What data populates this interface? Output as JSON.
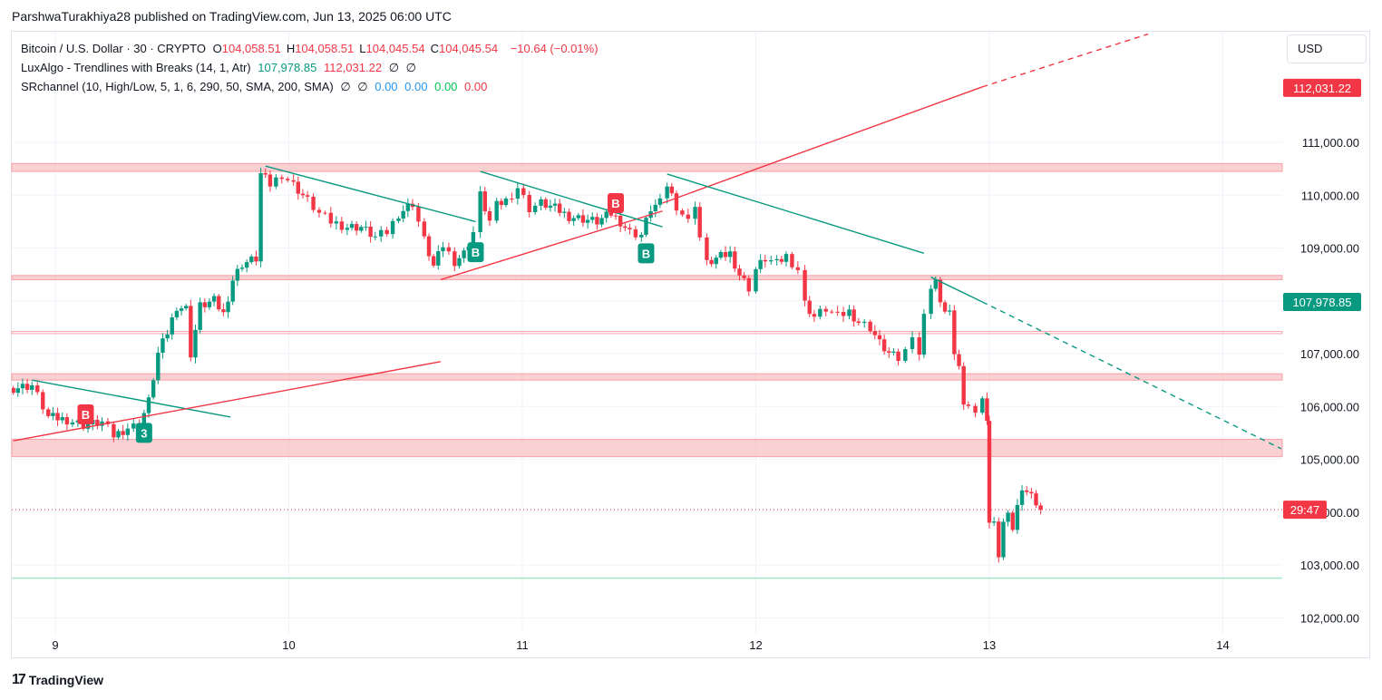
{
  "header": {
    "publisher_line": "ParshwaTurakhiya28 published on TradingView.com, Jun 13, 2025 06:00 UTC"
  },
  "legend": {
    "symbol": "Bitcoin / U.S. Dollar · 30 · CRYPTO",
    "ohlc": [
      {
        "k": "O",
        "v": "104,058.51"
      },
      {
        "k": "H",
        "v": "104,058.51"
      },
      {
        "k": "L",
        "v": "104,045.54"
      },
      {
        "k": "C",
        "v": "104,045.54"
      }
    ],
    "change": "−10.64 (−0.01%)",
    "luxalgo_name": "LuxAlgo - Trendlines with Breaks (14, 1, Atr)",
    "luxalgo_v1": "107,978.85",
    "luxalgo_v2": "112,031.22",
    "luxalgo_v3": "∅",
    "luxalgo_v4": "∅",
    "sr_name": "SRchannel (10, High/Low, 5, 1, 6, 290, 50, SMA, 200, SMA)",
    "sr_v1": "∅",
    "sr_v2": "∅",
    "sr_v3": "0.00",
    "sr_v4": "0.00",
    "sr_v5": "0.00",
    "sr_v6": "0.00"
  },
  "currency_button": "USD",
  "footer": {
    "brand": "TradingView",
    "mark": "17"
  },
  "colors": {
    "up": "#089981",
    "down": "#f23645",
    "zone": "#f8b0b4",
    "zone_edge": "#f7a1a6",
    "up_line": "#f23645",
    "down_line": "#089981",
    "support": "#a5e8c6",
    "grid": "#f0f3fa",
    "text": "#131722",
    "legend_up": "#089981",
    "legend_down": "#f23645",
    "sr_blue": "#2196f3",
    "sr_green": "#00c853"
  },
  "chart_data": {
    "type": "candlestick",
    "symbol": "BTCUSD",
    "timeframe": "30",
    "ylim": [
      101650,
      113050
    ],
    "y_ticks": [
      102000,
      103000,
      104000,
      105000,
      106000,
      107000,
      108000,
      109000,
      110000,
      111000
    ],
    "y_tick_labels": [
      "102,000.00",
      "103,000.00",
      "104,000.00",
      "105,000.00",
      "106,000.00",
      "107,000.00",
      "108,000.00",
      "109,000.00",
      "110,000.00",
      "111,000.00"
    ],
    "x_range_days": [
      8.82,
      14.25
    ],
    "x_ticks": [
      9,
      10,
      11,
      12,
      13,
      14
    ],
    "x_tick_labels": [
      "9",
      "10",
      "11",
      "12",
      "13",
      "14"
    ],
    "grid": true,
    "price_labels": [
      {
        "value": 112031.22,
        "text": "112,031.22",
        "color": "#f23645"
      },
      {
        "value": 107978.85,
        "text": "107,978.85",
        "color": "#089981"
      },
      {
        "value": 104045.54,
        "text": "29:47",
        "color": "#f23645"
      }
    ],
    "close_series": [
      {
        "t": 8.82,
        "c": 106350
      },
      {
        "t": 8.9,
        "c": 106400
      },
      {
        "t": 8.97,
        "c": 105800
      },
      {
        "t": 9.05,
        "c": 105750
      },
      {
        "t": 9.12,
        "c": 105650
      },
      {
        "t": 9.2,
        "c": 105700
      },
      {
        "t": 9.25,
        "c": 105450
      },
      {
        "t": 9.31,
        "c": 105600
      },
      {
        "t": 9.36,
        "c": 105650
      },
      {
        "t": 9.4,
        "c": 106100
      },
      {
        "t": 9.44,
        "c": 107000
      },
      {
        "t": 9.48,
        "c": 107400
      },
      {
        "t": 9.52,
        "c": 107900
      },
      {
        "t": 9.56,
        "c": 107850
      },
      {
        "t": 9.58,
        "c": 107000
      },
      {
        "t": 9.62,
        "c": 107900
      },
      {
        "t": 9.68,
        "c": 108000
      },
      {
        "t": 9.72,
        "c": 107750
      },
      {
        "t": 9.76,
        "c": 108400
      },
      {
        "t": 9.8,
        "c": 108700
      },
      {
        "t": 9.86,
        "c": 108800
      },
      {
        "t": 9.88,
        "c": 110400
      },
      {
        "t": 9.92,
        "c": 110200
      },
      {
        "t": 9.97,
        "c": 110400
      },
      {
        "t": 10.02,
        "c": 110200
      },
      {
        "t": 10.08,
        "c": 109900
      },
      {
        "t": 10.13,
        "c": 109650
      },
      {
        "t": 10.18,
        "c": 109500
      },
      {
        "t": 10.25,
        "c": 109400
      },
      {
        "t": 10.31,
        "c": 109400
      },
      {
        "t": 10.37,
        "c": 109200
      },
      {
        "t": 10.42,
        "c": 109300
      },
      {
        "t": 10.47,
        "c": 109650
      },
      {
        "t": 10.53,
        "c": 109850
      },
      {
        "t": 10.58,
        "c": 109150
      },
      {
        "t": 10.62,
        "c": 108650
      },
      {
        "t": 10.66,
        "c": 109050
      },
      {
        "t": 10.71,
        "c": 108750
      },
      {
        "t": 10.75,
        "c": 108900
      },
      {
        "t": 10.79,
        "c": 109300
      },
      {
        "t": 10.82,
        "c": 110000
      },
      {
        "t": 10.86,
        "c": 109500
      },
      {
        "t": 10.89,
        "c": 109800
      },
      {
        "t": 10.93,
        "c": 109900
      },
      {
        "t": 10.98,
        "c": 110150
      },
      {
        "t": 11.03,
        "c": 109750
      },
      {
        "t": 11.08,
        "c": 109850
      },
      {
        "t": 11.14,
        "c": 109750
      },
      {
        "t": 11.2,
        "c": 109600
      },
      {
        "t": 11.26,
        "c": 109550
      },
      {
        "t": 11.32,
        "c": 109500
      },
      {
        "t": 11.38,
        "c": 109650
      },
      {
        "t": 11.42,
        "c": 109500
      },
      {
        "t": 11.46,
        "c": 109300
      },
      {
        "t": 11.51,
        "c": 109250
      },
      {
        "t": 11.55,
        "c": 109750
      },
      {
        "t": 11.59,
        "c": 109850
      },
      {
        "t": 11.62,
        "c": 110200
      },
      {
        "t": 11.66,
        "c": 109800
      },
      {
        "t": 11.71,
        "c": 109500
      },
      {
        "t": 11.74,
        "c": 109850
      },
      {
        "t": 11.76,
        "c": 109200
      },
      {
        "t": 11.79,
        "c": 108700
      },
      {
        "t": 11.83,
        "c": 108800
      },
      {
        "t": 11.89,
        "c": 108900
      },
      {
        "t": 11.93,
        "c": 108500
      },
      {
        "t": 11.97,
        "c": 108250
      },
      {
        "t": 12.0,
        "c": 108600
      },
      {
        "t": 12.04,
        "c": 108800
      },
      {
        "t": 12.09,
        "c": 108700
      },
      {
        "t": 12.13,
        "c": 108850
      },
      {
        "t": 12.18,
        "c": 108600
      },
      {
        "t": 12.21,
        "c": 107950
      },
      {
        "t": 12.25,
        "c": 107700
      },
      {
        "t": 12.3,
        "c": 107850
      },
      {
        "t": 12.35,
        "c": 107700
      },
      {
        "t": 12.4,
        "c": 107800
      },
      {
        "t": 12.44,
        "c": 107600
      },
      {
        "t": 12.49,
        "c": 107500
      },
      {
        "t": 12.53,
        "c": 107200
      },
      {
        "t": 12.57,
        "c": 107000
      },
      {
        "t": 12.61,
        "c": 106900
      },
      {
        "t": 12.64,
        "c": 107050
      },
      {
        "t": 12.67,
        "c": 107400
      },
      {
        "t": 12.7,
        "c": 107000
      },
      {
        "t": 12.72,
        "c": 107700
      },
      {
        "t": 12.75,
        "c": 108300
      },
      {
        "t": 12.77,
        "c": 108400
      },
      {
        "t": 12.79,
        "c": 107900
      },
      {
        "t": 12.81,
        "c": 107850
      },
      {
        "t": 12.83,
        "c": 107800
      },
      {
        "t": 12.85,
        "c": 106900
      },
      {
        "t": 12.87,
        "c": 106800
      },
      {
        "t": 12.89,
        "c": 106000
      },
      {
        "t": 12.91,
        "c": 106100
      },
      {
        "t": 12.94,
        "c": 105900
      },
      {
        "t": 12.97,
        "c": 106100
      },
      {
        "t": 12.99,
        "c": 105800
      },
      {
        "t": 13.0,
        "c": 103800
      },
      {
        "t": 13.02,
        "c": 103750
      },
      {
        "t": 13.04,
        "c": 103200
      },
      {
        "t": 13.06,
        "c": 103800
      },
      {
        "t": 13.08,
        "c": 103900
      },
      {
        "t": 13.1,
        "c": 103700
      },
      {
        "t": 13.12,
        "c": 104100
      },
      {
        "t": 13.14,
        "c": 104500
      },
      {
        "t": 13.16,
        "c": 104400
      },
      {
        "t": 13.18,
        "c": 104300
      },
      {
        "t": 13.2,
        "c": 104200
      },
      {
        "t": 13.22,
        "c": 104045.54
      }
    ],
    "sr_zones": [
      {
        "from": 110450,
        "to": 110600
      },
      {
        "from": 108400,
        "to": 108480
      },
      {
        "from": 107380,
        "to": 107420,
        "thin": true
      },
      {
        "from": 106500,
        "to": 106620
      },
      {
        "from": 105050,
        "to": 105380
      }
    ],
    "support_line": 102750,
    "last_price_line": 104045.54,
    "trendlines": [
      {
        "kind": "down",
        "t1": 8.9,
        "p1": 106500,
        "t2": 9.75,
        "p2": 105800
      },
      {
        "kind": "up",
        "t1": 8.82,
        "p1": 105350,
        "t2": 10.65,
        "p2": 106850
      },
      {
        "kind": "down",
        "t1": 9.9,
        "p1": 110550,
        "t2": 10.8,
        "p2": 109500
      },
      {
        "kind": "up",
        "t1": 10.65,
        "p1": 108400,
        "t2": 11.6,
        "p2": 109700
      },
      {
        "kind": "down",
        "t1": 10.82,
        "p1": 110450,
        "t2": 11.6,
        "p2": 109400
      },
      {
        "kind": "up",
        "t1": 11.6,
        "p1": 109850,
        "t2": 12.97,
        "p2": 112050
      },
      {
        "kind": "up",
        "t1": 12.97,
        "p1": 112050,
        "t2": 13.68,
        "p2": 113050,
        "dashed": true
      },
      {
        "kind": "down",
        "t1": 11.62,
        "p1": 110400,
        "t2": 12.72,
        "p2": 108900
      },
      {
        "kind": "down",
        "t1": 12.75,
        "p1": 108450,
        "t2": 12.97,
        "p2": 107980
      },
      {
        "kind": "down",
        "t1": 12.97,
        "p1": 107980,
        "t2": 14.25,
        "p2": 105200,
        "dashed": true
      }
    ],
    "break_markers": [
      {
        "t": 9.13,
        "p": 105850,
        "label": "B",
        "kind": "sell"
      },
      {
        "t": 9.38,
        "p": 105500,
        "label": "3",
        "kind": "buy"
      },
      {
        "t": 10.8,
        "p": 108920,
        "label": "B",
        "kind": "buy"
      },
      {
        "t": 11.4,
        "p": 109850,
        "label": "B",
        "kind": "sell"
      },
      {
        "t": 11.53,
        "p": 108900,
        "label": "B",
        "kind": "buy"
      }
    ]
  }
}
